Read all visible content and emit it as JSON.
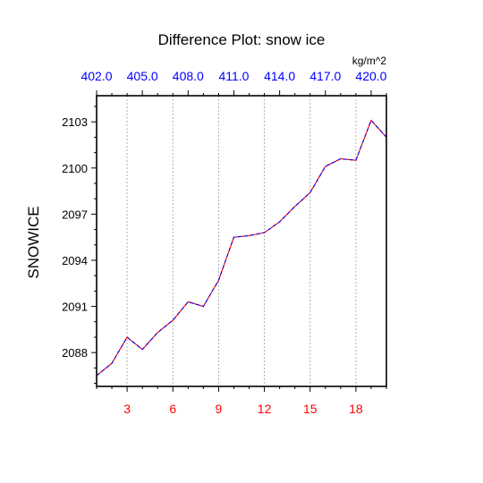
{
  "chart_data": {
    "type": "line",
    "title": "Difference Plot: snow ice",
    "ylabel": "SNOWICE",
    "top_axis_units": "kg/m^2",
    "xlim": [
      1,
      20
    ],
    "ylim": [
      2085.8,
      2104.7
    ],
    "x_ticks": [
      3,
      6,
      9,
      12,
      15,
      18
    ],
    "x_tick_labels": [
      "3",
      "6",
      "9",
      "12",
      "15",
      "18"
    ],
    "top_ticks": [
      1,
      4,
      7,
      10,
      13,
      16,
      19
    ],
    "top_tick_labels": [
      "402.0",
      "405.0",
      "408.0",
      "411.0",
      "414.0",
      "417.0",
      "420.0"
    ],
    "y_ticks": [
      2088,
      2091,
      2094,
      2097,
      2100,
      2103
    ],
    "y_tick_labels": [
      "2088",
      "2091",
      "2094",
      "2097",
      "2100",
      "2103"
    ],
    "grid": "vertical dashed at bottom ticks",
    "series": [
      {
        "color": "#ff0000",
        "dash_color": "#0000ff",
        "x": [
          1,
          2,
          3,
          4,
          5,
          6,
          7,
          8,
          9,
          10,
          11,
          12,
          13,
          14,
          15,
          16,
          17,
          18,
          19,
          20
        ],
        "y": [
          2086.5,
          2087.3,
          2089.0,
          2088.2,
          2089.3,
          2090.1,
          2091.3,
          2091.0,
          2092.7,
          2095.5,
          2095.6,
          2095.8,
          2096.5,
          2097.5,
          2098.4,
          2100.1,
          2100.6,
          2100.5,
          2103.1,
          2102.0
        ]
      }
    ]
  }
}
